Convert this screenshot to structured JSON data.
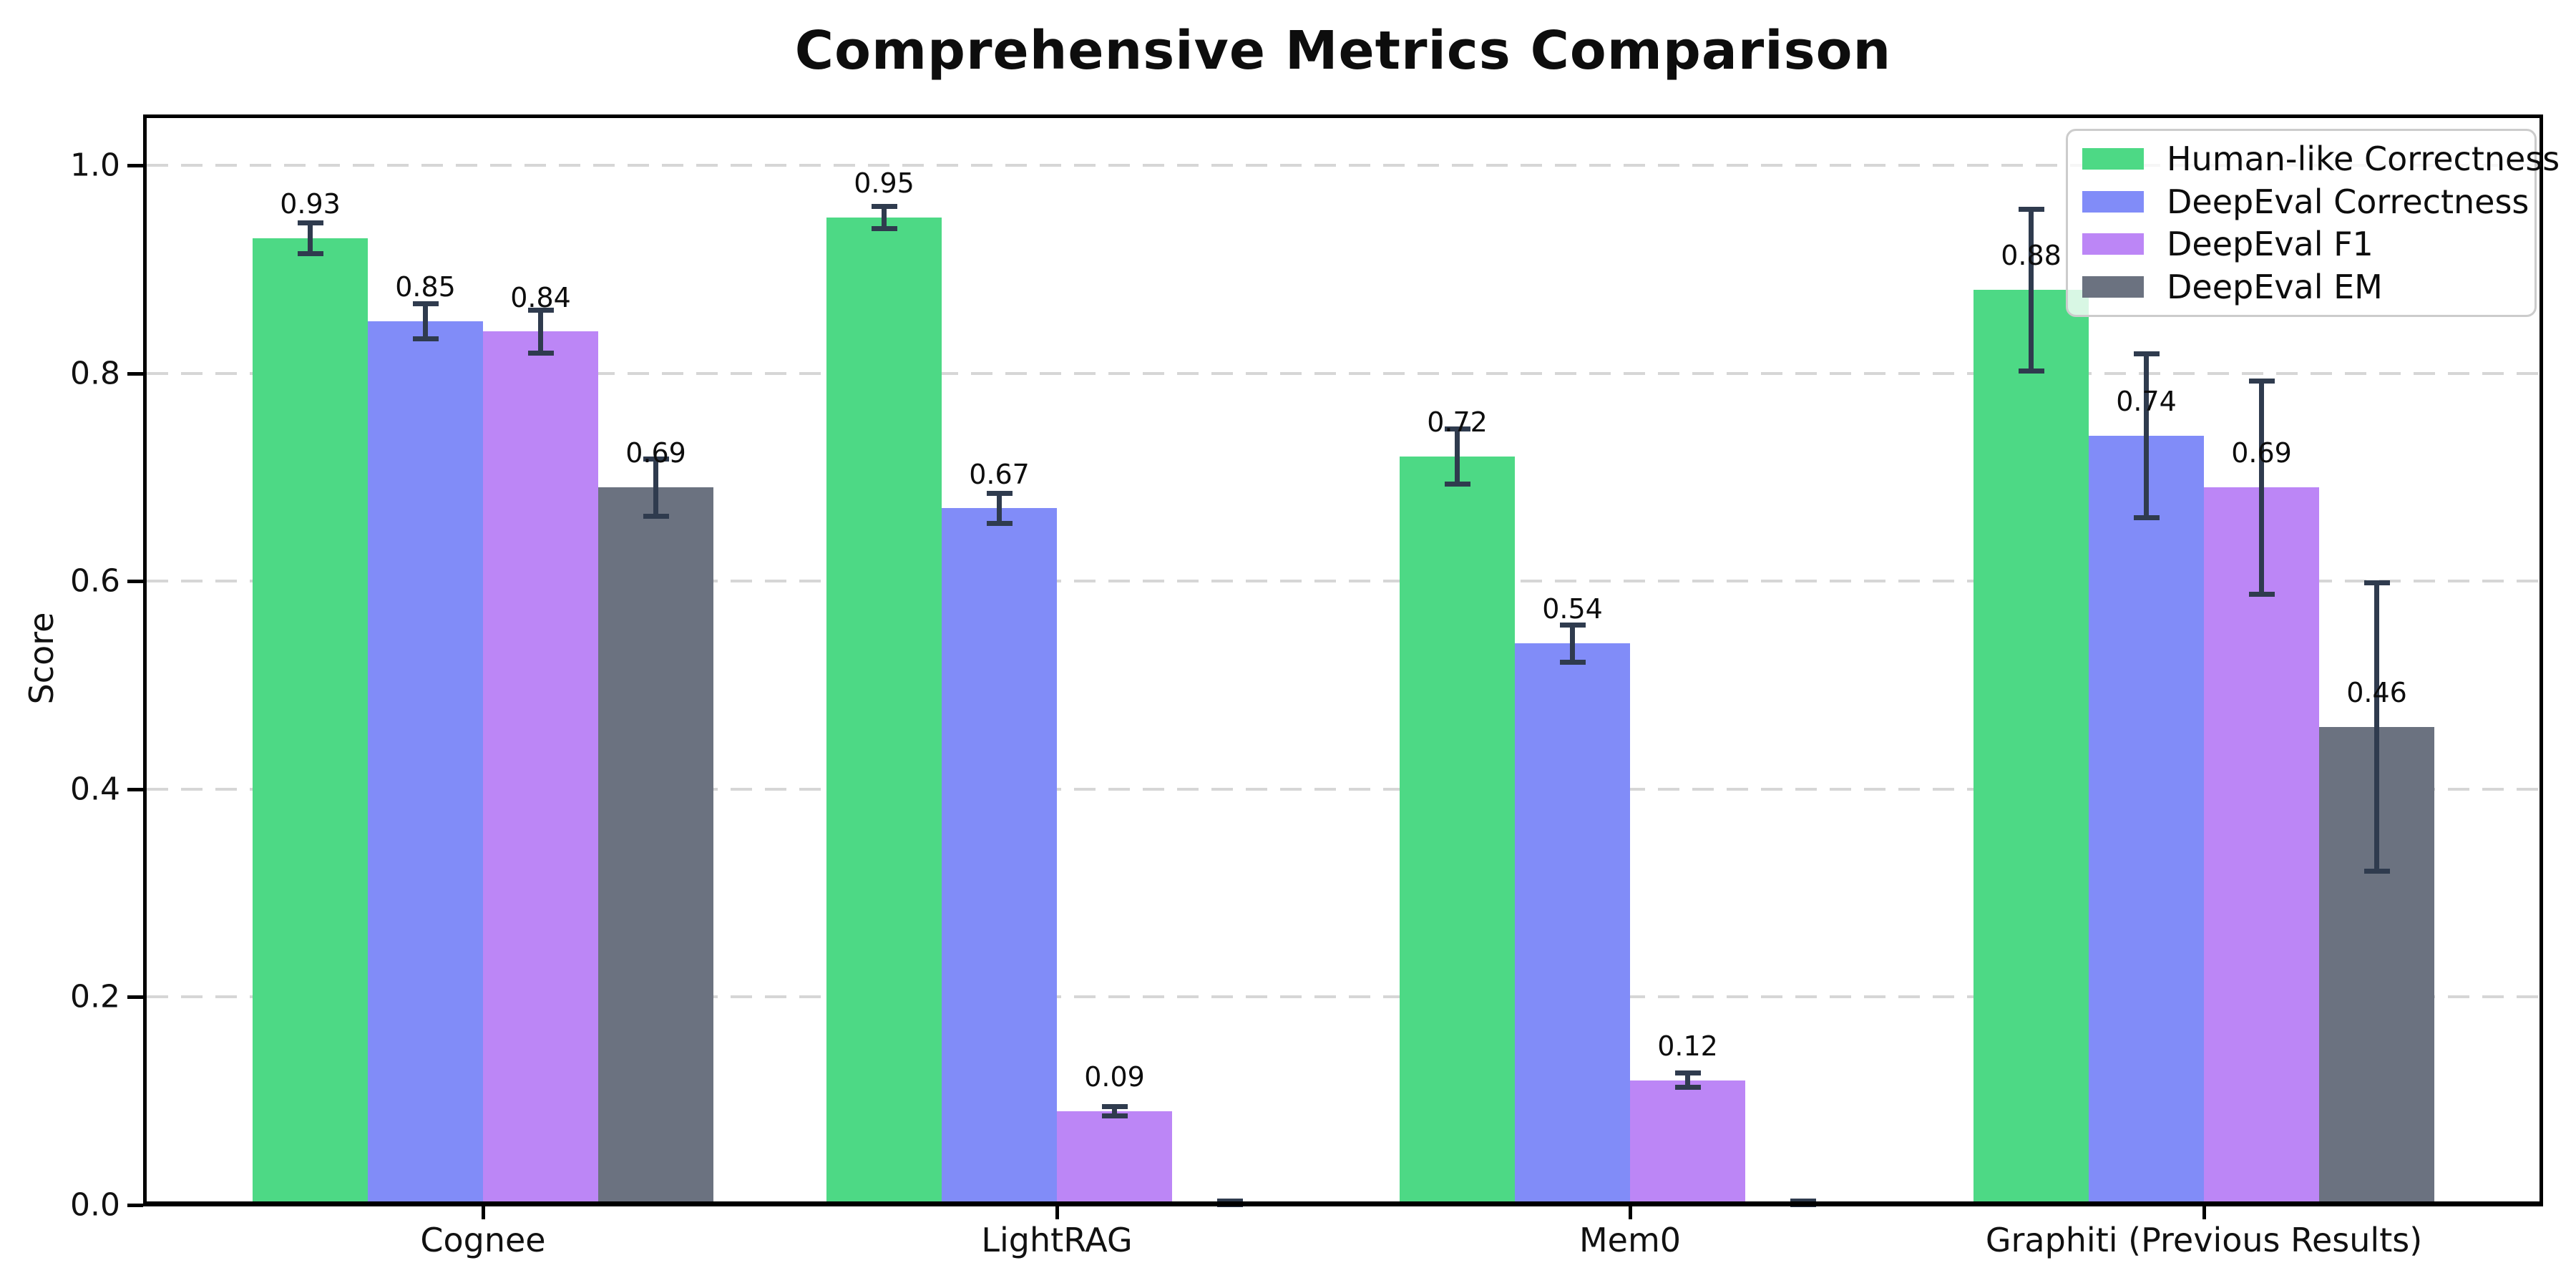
{
  "chart_data": {
    "type": "bar",
    "title": "Comprehensive Metrics Comparison",
    "ylabel": "Score",
    "xlabel": "",
    "ylim": [
      0,
      1.05
    ],
    "yticks": [
      0.0,
      0.2,
      0.4,
      0.6,
      0.8,
      1.0
    ],
    "ytick_labels": [
      "0.0",
      "0.2",
      "0.4",
      "0.6",
      "0.8",
      "1.0"
    ],
    "grid": {
      "axis": "y",
      "style": "dashed",
      "color": "#d6d6d6"
    },
    "legend_position": "upper right",
    "categories": [
      "Cognee",
      "LightRAG",
      "Mem0",
      "Graphiti (Previous Results)"
    ],
    "series": [
      {
        "name": "Human-like Correctness",
        "color": "#4dd985",
        "values": [
          0.93,
          0.95,
          0.72,
          0.88
        ],
        "errors": [
          0.015,
          0.011,
          0.027,
          0.078
        ],
        "labels": [
          "0.93",
          "0.95",
          "0.72",
          "0.88"
        ]
      },
      {
        "name": "DeepEval Correctness",
        "color": "#818cf8",
        "values": [
          0.85,
          0.67,
          0.54,
          0.74
        ],
        "errors": [
          0.017,
          0.015,
          0.018,
          0.079
        ],
        "labels": [
          "0.85",
          "0.67",
          "0.54",
          "0.74"
        ]
      },
      {
        "name": "DeepEval F1",
        "color": "#bc86f6",
        "values": [
          0.84,
          0.09,
          0.12,
          0.69
        ],
        "errors": [
          0.021,
          0.005,
          0.007,
          0.103
        ],
        "labels": [
          "0.84",
          "0.09",
          "0.12",
          "0.69"
        ]
      },
      {
        "name": "DeepEval EM",
        "color": "#6b7280",
        "values": [
          0.69,
          0.0,
          0.0,
          0.46
        ],
        "errors": [
          0.028,
          0.004,
          0.004,
          0.139
        ],
        "labels": [
          "0.69",
          "",
          "",
          "0.46"
        ]
      }
    ],
    "error_bar_color": "#2f3b4e"
  }
}
